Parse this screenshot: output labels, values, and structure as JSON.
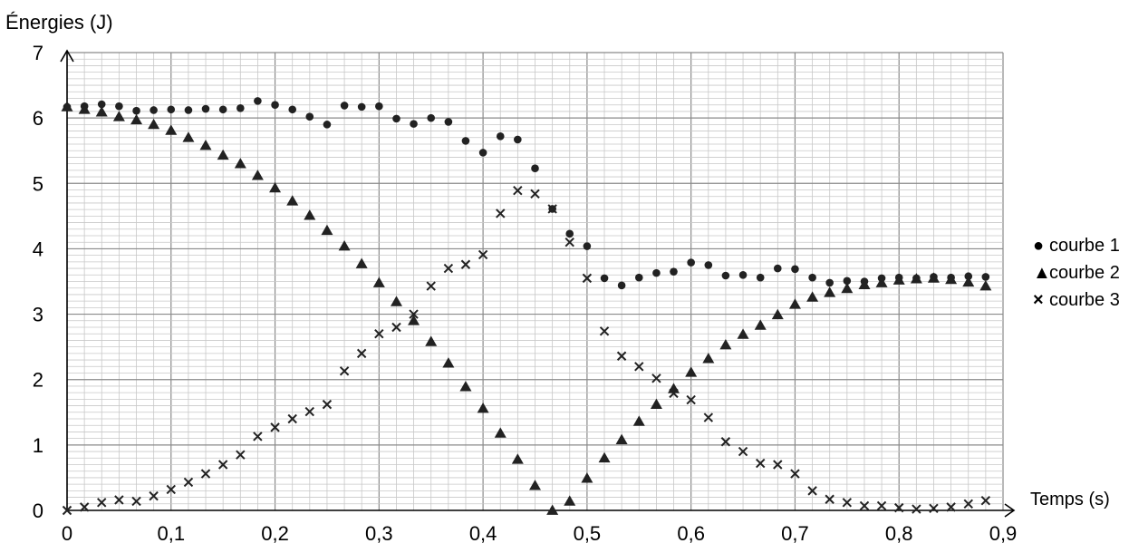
{
  "chart_data": {
    "type": "scatter",
    "ylabel": "Énergies (J)",
    "xlabel": "Temps (s)",
    "xlim": [
      0,
      0.9
    ],
    "ylim": [
      0,
      7
    ],
    "x_ticks": [
      "0",
      "0,1",
      "0,2",
      "0,3",
      "0,4",
      "0,5",
      "0,6",
      "0,7",
      "0,8",
      "0,9"
    ],
    "y_ticks": [
      "0",
      "1",
      "2",
      "3",
      "4",
      "5",
      "6",
      "7"
    ],
    "grid": true,
    "legend_position": "right",
    "series": [
      {
        "name": "courbe 1",
        "marker": "circle",
        "color": "#222222",
        "x": [
          0,
          0.0167,
          0.0333,
          0.05,
          0.0667,
          0.0833,
          0.1,
          0.1167,
          0.1333,
          0.15,
          0.1667,
          0.1833,
          0.2,
          0.2167,
          0.2333,
          0.25,
          0.2667,
          0.2833,
          0.3,
          0.3167,
          0.3333,
          0.35,
          0.3667,
          0.3833,
          0.4,
          0.4167,
          0.4333,
          0.45,
          0.4667,
          0.4833,
          0.5,
          0.5167,
          0.5333,
          0.55,
          0.5667,
          0.5833,
          0.6,
          0.6167,
          0.6333,
          0.65,
          0.6667,
          0.6833,
          0.7,
          0.7167,
          0.7333,
          0.75,
          0.7667,
          0.7833,
          0.8,
          0.8167,
          0.8333,
          0.85,
          0.8667,
          0.8833
        ],
        "y": [
          6.17,
          6.18,
          6.21,
          6.18,
          6.11,
          6.12,
          6.13,
          6.12,
          6.14,
          6.13,
          6.15,
          6.26,
          6.2,
          6.13,
          6.02,
          5.9,
          6.19,
          6.17,
          6.18,
          5.99,
          5.91,
          6.0,
          5.94,
          5.65,
          5.47,
          5.72,
          5.67,
          5.23,
          4.61,
          4.23,
          4.04,
          3.55,
          3.44,
          3.56,
          3.63,
          3.65,
          3.79,
          3.75,
          3.59,
          3.6,
          3.56,
          3.7,
          3.69,
          3.56,
          3.48,
          3.51,
          3.5,
          3.55,
          3.56,
          3.55,
          3.57,
          3.56,
          3.58,
          3.57
        ]
      },
      {
        "name": "courbe 2",
        "marker": "triangle",
        "color": "#222222",
        "x": [
          0,
          0.0167,
          0.0333,
          0.05,
          0.0667,
          0.0833,
          0.1,
          0.1167,
          0.1333,
          0.15,
          0.1667,
          0.1833,
          0.2,
          0.2167,
          0.2333,
          0.25,
          0.2667,
          0.2833,
          0.3,
          0.3167,
          0.3333,
          0.35,
          0.3667,
          0.3833,
          0.4,
          0.4167,
          0.4333,
          0.45,
          0.4667,
          0.4833,
          0.5,
          0.5167,
          0.5333,
          0.55,
          0.5667,
          0.5833,
          0.6,
          0.6167,
          0.6333,
          0.65,
          0.6667,
          0.6833,
          0.7,
          0.7167,
          0.7333,
          0.75,
          0.7667,
          0.7833,
          0.8,
          0.8167,
          0.8333,
          0.85,
          0.8667,
          0.8833
        ],
        "y": [
          6.17,
          6.13,
          6.09,
          6.02,
          5.97,
          5.9,
          5.81,
          5.7,
          5.58,
          5.43,
          5.3,
          5.12,
          4.93,
          4.73,
          4.51,
          4.28,
          4.04,
          3.77,
          3.48,
          3.19,
          2.9,
          2.58,
          2.25,
          1.89,
          1.56,
          1.18,
          0.78,
          0.38,
          0.0,
          0.14,
          0.49,
          0.8,
          1.08,
          1.36,
          1.62,
          1.86,
          2.11,
          2.32,
          2.53,
          2.69,
          2.83,
          2.99,
          3.15,
          3.26,
          3.33,
          3.39,
          3.45,
          3.48,
          3.52,
          3.54,
          3.55,
          3.53,
          3.49,
          3.43
        ]
      },
      {
        "name": "courbe 3",
        "marker": "cross",
        "color": "#222222",
        "x": [
          0,
          0.0167,
          0.0333,
          0.05,
          0.0667,
          0.0833,
          0.1,
          0.1167,
          0.1333,
          0.15,
          0.1667,
          0.1833,
          0.2,
          0.2167,
          0.2333,
          0.25,
          0.2667,
          0.2833,
          0.3,
          0.3167,
          0.3333,
          0.35,
          0.3667,
          0.3833,
          0.4,
          0.4167,
          0.4333,
          0.45,
          0.4667,
          0.4833,
          0.5,
          0.5167,
          0.5333,
          0.55,
          0.5667,
          0.5833,
          0.6,
          0.6167,
          0.6333,
          0.65,
          0.6667,
          0.6833,
          0.7,
          0.7167,
          0.7333,
          0.75,
          0.7667,
          0.7833,
          0.8,
          0.8167,
          0.8333,
          0.85,
          0.8667,
          0.8833
        ],
        "y": [
          0.0,
          0.05,
          0.12,
          0.16,
          0.14,
          0.22,
          0.32,
          0.43,
          0.56,
          0.7,
          0.85,
          1.13,
          1.27,
          1.4,
          1.51,
          1.62,
          2.13,
          2.4,
          2.7,
          2.8,
          3.0,
          3.43,
          3.7,
          3.76,
          3.91,
          4.54,
          4.89,
          4.84,
          4.61,
          4.1,
          3.55,
          2.74,
          2.36,
          2.2,
          2.02,
          1.79,
          1.69,
          1.42,
          1.05,
          0.9,
          0.72,
          0.7,
          0.56,
          0.3,
          0.17,
          0.12,
          0.07,
          0.07,
          0.04,
          0.02,
          0.03,
          0.05,
          0.1,
          0.15
        ]
      }
    ]
  }
}
